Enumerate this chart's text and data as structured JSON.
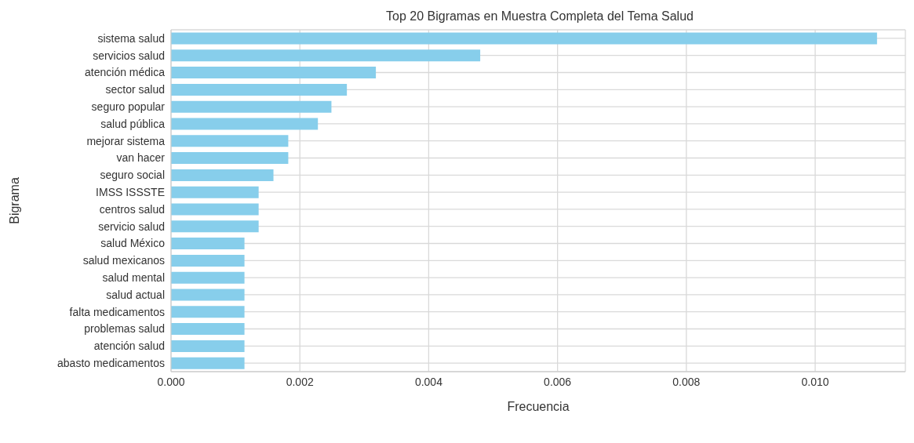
{
  "chart_data": {
    "type": "bar",
    "orientation": "horizontal",
    "title": "Top 20 Bigramas en Muestra Completa del Tema Salud",
    "xlabel": "Frecuencia",
    "ylabel": "Bigrama",
    "categories": [
      "sistema salud",
      "servicios salud",
      "atención médica",
      "sector salud",
      "seguro popular",
      "salud pública",
      "mejorar sistema",
      "van hacer",
      "seguro social",
      "IMSS ISSSTE",
      "centros salud",
      "servicio salud",
      "salud México",
      "salud mexicanos",
      "salud mental",
      "salud actual",
      "falta medicamentos",
      "problemas salud",
      "atención salud",
      "abasto medicamentos"
    ],
    "values": [
      0.01096,
      0.0048,
      0.00318,
      0.00273,
      0.00249,
      0.00228,
      0.00182,
      0.00182,
      0.00159,
      0.00136,
      0.00136,
      0.00136,
      0.00114,
      0.00114,
      0.00114,
      0.00114,
      0.00114,
      0.00114,
      0.00114,
      0.00114
    ],
    "color": "#87ceeb",
    "xlim": [
      0,
      0.0114
    ],
    "xticks": [
      {
        "value": 0,
        "label": "0.000"
      },
      {
        "value": 0.002,
        "label": "0.002"
      },
      {
        "value": 0.004,
        "label": "0.004"
      },
      {
        "value": 0.006,
        "label": "0.006"
      },
      {
        "value": 0.008,
        "label": "0.008"
      },
      {
        "value": 0.01,
        "label": "0.010"
      }
    ],
    "grid": true
  }
}
